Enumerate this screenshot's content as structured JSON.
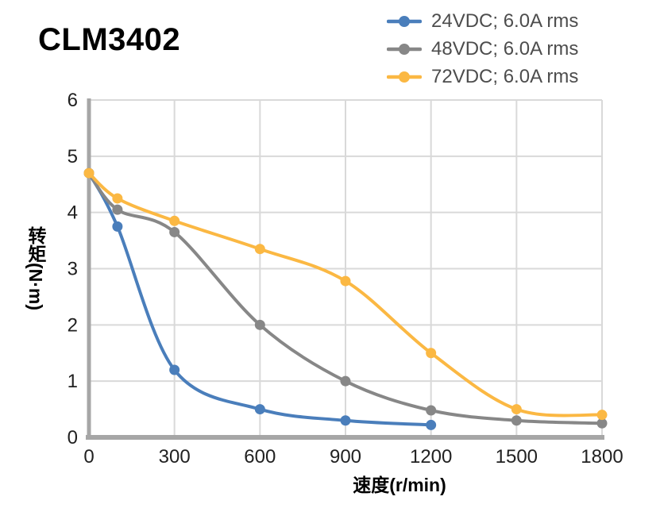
{
  "page": {
    "background": "#ffffff"
  },
  "chart_data": {
    "type": "line",
    "title": "CLM3402",
    "xlabel": "速度(r/min)",
    "ylabel": "转矩(N·m)",
    "xlim": [
      0,
      1800
    ],
    "ylim": [
      0,
      6
    ],
    "x_ticks": [
      0,
      300,
      600,
      900,
      1200,
      1500,
      1800
    ],
    "y_ticks": [
      0,
      1,
      2,
      3,
      4,
      5,
      6
    ],
    "grid": true,
    "legend_position": "top-right",
    "axis_color": "#a6a6a6",
    "grid_color": "#d9d9d9",
    "tick_label_color": "#212121",
    "legend_text_color": "#4d4d4d",
    "series": [
      {
        "name": "24VDC; 6.0A rms",
        "color": "#4a7ebb",
        "points": [
          [
            0,
            4.7
          ],
          [
            100,
            3.75
          ],
          [
            300,
            1.2
          ],
          [
            600,
            0.5
          ],
          [
            900,
            0.3
          ],
          [
            1200,
            0.22
          ]
        ]
      },
      {
        "name": "48VDC; 6.0A rms",
        "color": "#878787",
        "points": [
          [
            0,
            4.7
          ],
          [
            100,
            4.05
          ],
          [
            300,
            3.65
          ],
          [
            600,
            2.0
          ],
          [
            900,
            1.0
          ],
          [
            1200,
            0.48
          ],
          [
            1500,
            0.3
          ],
          [
            1800,
            0.25
          ]
        ]
      },
      {
        "name": "72VDC; 6.0A rms",
        "color": "#fbb843",
        "points": [
          [
            0,
            4.7
          ],
          [
            100,
            4.25
          ],
          [
            300,
            3.85
          ],
          [
            600,
            3.35
          ],
          [
            900,
            2.78
          ],
          [
            1200,
            1.5
          ],
          [
            1500,
            0.5
          ],
          [
            1800,
            0.4
          ]
        ]
      }
    ]
  }
}
